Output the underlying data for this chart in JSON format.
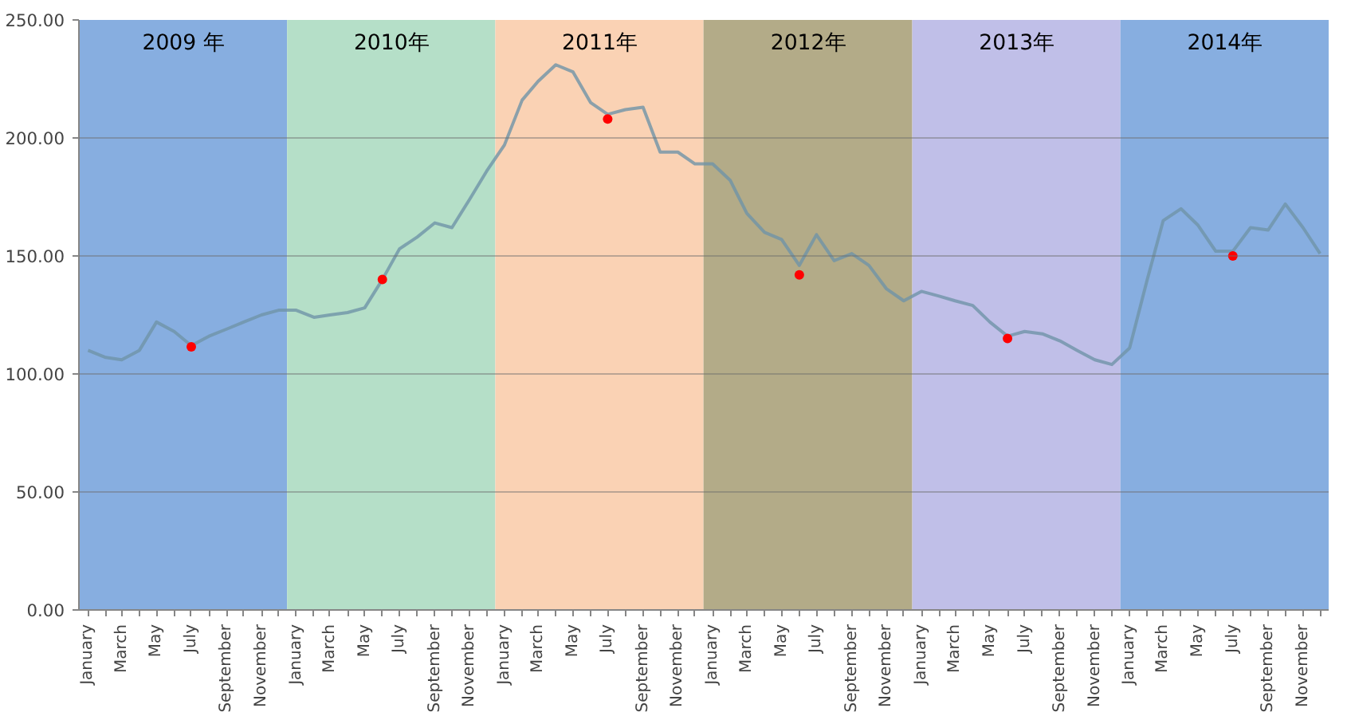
{
  "chart_data": {
    "type": "line",
    "x": [
      "2009-01",
      "2009-02",
      "2009-03",
      "2009-04",
      "2009-05",
      "2009-06",
      "2009-07",
      "2009-08",
      "2009-09",
      "2009-10",
      "2009-11",
      "2009-12",
      "2010-01",
      "2010-02",
      "2010-03",
      "2010-04",
      "2010-05",
      "2010-06",
      "2010-07",
      "2010-08",
      "2010-09",
      "2010-10",
      "2010-11",
      "2010-12",
      "2011-01",
      "2011-02",
      "2011-03",
      "2011-04",
      "2011-05",
      "2011-06",
      "2011-07",
      "2011-08",
      "2011-09",
      "2011-10",
      "2011-11",
      "2011-12",
      "2012-01",
      "2012-02",
      "2012-03",
      "2012-04",
      "2012-05",
      "2012-06",
      "2012-07",
      "2012-08",
      "2012-09",
      "2012-10",
      "2012-11",
      "2012-12",
      "2013-01",
      "2013-02",
      "2013-03",
      "2013-04",
      "2013-05",
      "2013-06",
      "2013-07",
      "2013-08",
      "2013-09",
      "2013-10",
      "2013-11",
      "2013-12",
      "2014-01",
      "2014-02",
      "2014-03",
      "2014-04",
      "2014-05",
      "2014-06",
      "2014-07",
      "2014-08",
      "2014-09",
      "2014-10",
      "2014-11",
      "2014-12"
    ],
    "series": [
      {
        "color": "#6f94a8",
        "values": [
          110,
          107,
          106,
          110,
          122,
          118,
          112,
          116,
          119,
          122,
          125,
          127,
          127,
          124,
          125,
          126,
          128,
          140,
          153,
          158,
          164,
          162,
          174,
          186,
          197,
          216,
          224,
          231,
          228,
          215,
          210,
          212,
          213,
          194,
          194,
          189,
          189,
          182,
          168,
          160,
          157,
          146,
          159,
          148,
          151,
          146,
          136,
          131,
          135,
          133,
          131,
          129,
          122,
          116,
          118,
          117,
          114,
          110,
          106,
          104,
          111,
          140,
          165,
          170,
          163,
          152,
          152,
          162,
          161,
          172,
          162,
          151
        ]
      },
      {
        "type": "scatter",
        "color": "#ff0000",
        "x": [
          "2009-07",
          "2010-06",
          "2011-07",
          "2012-06",
          "2013-06",
          "2014-07"
        ],
        "values": [
          111.5,
          140,
          208,
          142,
          115,
          150
        ]
      }
    ],
    "xlim": [
      "2008-12-16",
      "2014-12-16"
    ],
    "xticks": [
      {
        "value": "2009-01",
        "label": "January"
      },
      {
        "value": "2009-02",
        "label": null
      },
      {
        "value": "2009-03",
        "label": "March"
      },
      {
        "value": "2009-04",
        "label": null
      },
      {
        "value": "2009-05",
        "label": "May"
      },
      {
        "value": "2009-06",
        "label": null
      },
      {
        "value": "2009-07",
        "label": "July"
      },
      {
        "value": "2009-08",
        "label": null
      },
      {
        "value": "2009-09",
        "label": "September"
      },
      {
        "value": "2009-10",
        "label": null
      },
      {
        "value": "2009-11",
        "label": "November"
      },
      {
        "value": "2009-12",
        "label": null
      },
      {
        "value": "2010-01",
        "label": "January"
      },
      {
        "value": "2010-02",
        "label": null
      },
      {
        "value": "2010-03",
        "label": "March"
      },
      {
        "value": "2010-04",
        "label": null
      },
      {
        "value": "2010-05",
        "label": "May"
      },
      {
        "value": "2010-06",
        "label": null
      },
      {
        "value": "2010-07",
        "label": "July"
      },
      {
        "value": "2010-08",
        "label": null
      },
      {
        "value": "2010-09",
        "label": "September"
      },
      {
        "value": "2010-10",
        "label": null
      },
      {
        "value": "2010-11",
        "label": "November"
      },
      {
        "value": "2010-12",
        "label": null
      },
      {
        "value": "2011-01",
        "label": "January"
      },
      {
        "value": "2011-02",
        "label": null
      },
      {
        "value": "2011-03",
        "label": "March"
      },
      {
        "value": "2011-04",
        "label": null
      },
      {
        "value": "2011-05",
        "label": "May"
      },
      {
        "value": "2011-06",
        "label": null
      },
      {
        "value": "2011-07",
        "label": "July"
      },
      {
        "value": "2011-08",
        "label": null
      },
      {
        "value": "2011-09",
        "label": "September"
      },
      {
        "value": "2011-10",
        "label": null
      },
      {
        "value": "2011-11",
        "label": "November"
      },
      {
        "value": "2011-12",
        "label": null
      },
      {
        "value": "2012-01",
        "label": "January"
      },
      {
        "value": "2012-02",
        "label": null
      },
      {
        "value": "2012-03",
        "label": "March"
      },
      {
        "value": "2012-04",
        "label": null
      },
      {
        "value": "2012-05",
        "label": "May"
      },
      {
        "value": "2012-06",
        "label": null
      },
      {
        "value": "2012-07",
        "label": "July"
      },
      {
        "value": "2012-08",
        "label": null
      },
      {
        "value": "2012-09",
        "label": "September"
      },
      {
        "value": "2012-10",
        "label": null
      },
      {
        "value": "2012-11",
        "label": "November"
      },
      {
        "value": "2012-12",
        "label": null
      },
      {
        "value": "2013-01",
        "label": "January"
      },
      {
        "value": "2013-02",
        "label": null
      },
      {
        "value": "2013-03",
        "label": "March"
      },
      {
        "value": "2013-04",
        "label": null
      },
      {
        "value": "2013-05",
        "label": "May"
      },
      {
        "value": "2013-06",
        "label": null
      },
      {
        "value": "2013-07",
        "label": "July"
      },
      {
        "value": "2013-08",
        "label": null
      },
      {
        "value": "2013-09",
        "label": "September"
      },
      {
        "value": "2013-10",
        "label": null
      },
      {
        "value": "2013-11",
        "label": "November"
      },
      {
        "value": "2013-12",
        "label": null
      },
      {
        "value": "2014-01",
        "label": "January"
      },
      {
        "value": "2014-02",
        "label": null
      },
      {
        "value": "2014-03",
        "label": "March"
      },
      {
        "value": "2014-04",
        "label": null
      },
      {
        "value": "2014-05",
        "label": "May"
      },
      {
        "value": "2014-06",
        "label": null
      },
      {
        "value": "2014-07",
        "label": "July"
      },
      {
        "value": "2014-08",
        "label": null
      },
      {
        "value": "2014-09",
        "label": "September"
      },
      {
        "value": "2014-10",
        "label": null
      },
      {
        "value": "2014-11",
        "label": "November"
      },
      {
        "value": "2014-12",
        "label": null
      }
    ],
    "ylim": [
      0,
      250
    ],
    "yticks": [
      {
        "value": 0,
        "label": "0.00"
      },
      {
        "value": 50,
        "label": "50.00"
      },
      {
        "value": 100,
        "label": "100.00"
      },
      {
        "value": 150,
        "label": "150.00"
      },
      {
        "value": 200,
        "label": "200.00"
      },
      {
        "value": 250,
        "label": "250.00"
      }
    ],
    "grid": "y",
    "bands": [
      {
        "axis": "x",
        "from": "2008-12-16",
        "to": "2009-12-16",
        "label": "2009 年",
        "color": "#87aee0"
      },
      {
        "axis": "x",
        "from": "2009-12-16",
        "to": "2010-12-16",
        "label": "2010年",
        "color": "#b5dfc8"
      },
      {
        "axis": "x",
        "from": "2010-12-16",
        "to": "2011-12-16",
        "label": "2011年",
        "color": "#fad2b4"
      },
      {
        "axis": "x",
        "from": "2011-12-16",
        "to": "2012-12-16",
        "label": "2012年",
        "color": "#b3ab88"
      },
      {
        "axis": "x",
        "from": "2012-12-16",
        "to": "2013-12-16",
        "label": "2013年",
        "color": "#c0bfe8"
      },
      {
        "axis": "x",
        "from": "2013-12-16",
        "to": "2014-12-16",
        "label": "2014年",
        "color": "#87aee0"
      }
    ]
  }
}
